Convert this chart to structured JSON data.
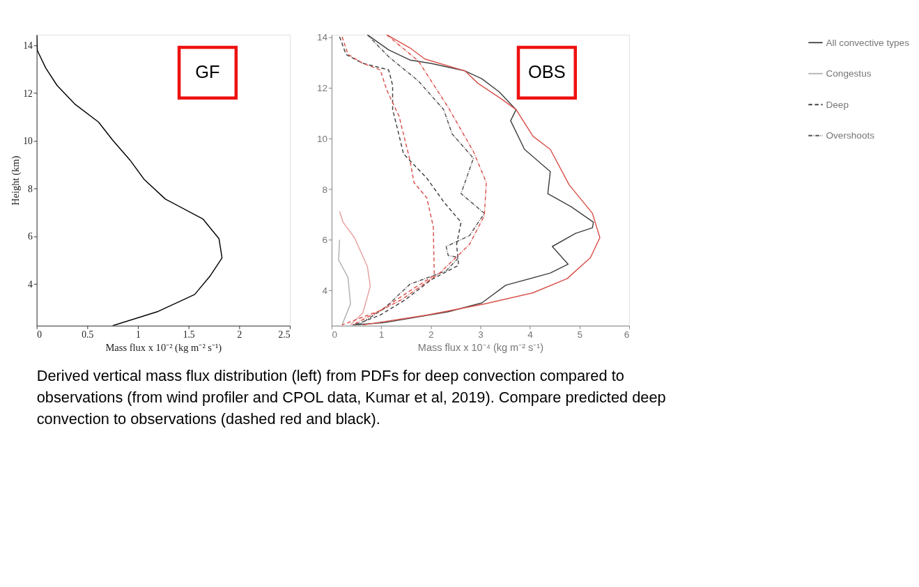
{
  "chart_data": [
    {
      "type": "line",
      "xlabel": "Mass flux x 10⁻² (kg m⁻² s⁻¹)",
      "ylabel": "Height (km)",
      "xlim": [
        0,
        2.5
      ],
      "xticks": [
        0,
        0.5,
        1,
        1.5,
        2,
        2.5
      ],
      "ylim": [
        2.25,
        14.45
      ],
      "yticks": [
        4,
        6,
        8,
        10,
        12,
        14
      ],
      "annotations": [
        "GF"
      ],
      "series": [
        {
          "color": "#000000",
          "line_style": "solid",
          "x": [
            0,
            0.006,
            0.09,
            0.2,
            0.38,
            0.61,
            0.75,
            0.92,
            1.06,
            1.27,
            1.64,
            1.8,
            1.83,
            1.71,
            1.56,
            1.2,
            0.75
          ],
          "values": [
            14.43,
            13.79,
            13.05,
            12.33,
            11.53,
            10.79,
            10.03,
            9.2,
            8.39,
            7.56,
            6.73,
            5.9,
            5.09,
            4.32,
            3.56,
            2.85,
            2.25
          ]
        }
      ]
    },
    {
      "type": "line",
      "xlabel": "Mass flux x 10⁻⁴ (kg m⁻² s⁻¹)",
      "xlim": [
        0,
        6
      ],
      "xticks": [
        0,
        1,
        2,
        3,
        4,
        5,
        6
      ],
      "ylim": [
        2.6,
        14.1
      ],
      "yticks": [
        4,
        6,
        8,
        10,
        12,
        14
      ],
      "legend": "right",
      "annotations": [
        "OBS",
        "Derived vertical mass flux distribution (left) from PDFs for deep convection compared to observations (from wind profiler and CPOL data, Kumar et al, 2019). Compare predicted deep convection to observations (dashed red and black)."
      ],
      "series": [
        {
          "name": "All convective types",
          "color": "#404040",
          "line_style": "solid",
          "x": [
            0.72,
            1.15,
            1.58,
            2.0,
            2.69,
            3.03,
            3.38,
            3.72,
            3.61,
            3.89,
            4.41,
            4.36,
            4.83,
            5.28,
            5.26,
            4.92,
            4.45,
            4.77,
            4.41,
            3.51,
            3.03,
            2.35,
            1.06,
            0.42
          ],
          "values": [
            14.1,
            13.5,
            13.1,
            12.97,
            12.67,
            12.36,
            11.84,
            11.14,
            10.7,
            9.57,
            8.69,
            7.82,
            7.3,
            6.69,
            6.47,
            6.25,
            5.73,
            5.03,
            4.68,
            4.2,
            3.5,
            3.15,
            2.72,
            2.63
          ]
        },
        {
          "color": "#d9504a",
          "line_style": "solid",
          "x": [
            1.11,
            1.58,
            1.88,
            2.69,
            2.95,
            3.42,
            3.72,
            4.06,
            4.41,
            4.79,
            5.26,
            5.41,
            5.22,
            4.75,
            4.06,
            3.08,
            1.92,
            0.63
          ],
          "values": [
            14.1,
            13.58,
            13.14,
            12.67,
            12.18,
            11.57,
            11.14,
            10.09,
            9.57,
            8.17,
            7.04,
            6.08,
            5.29,
            4.46,
            3.9,
            3.46,
            3.02,
            2.63
          ]
        },
        {
          "name": "Congestus",
          "color": "#b0b0b0",
          "line_style": "solid",
          "x": [
            0.16,
            0.14,
            0.33,
            0.38,
            0.21
          ],
          "values": [
            5.99,
            5.2,
            4.51,
            3.46,
            2.63
          ]
        },
        {
          "color": "#e8a0a0",
          "line_style": "solid",
          "x": [
            0.16,
            0.23,
            0.46,
            0.72,
            0.78,
            0.63,
            0.38
          ],
          "values": [
            7.12,
            6.69,
            6.08,
            4.94,
            4.16,
            3.11,
            2.63
          ]
        },
        {
          "name": "Deep",
          "color": "#404040",
          "line_style": "dashed",
          "x": [
            0.16,
            0.29,
            0.63,
            1.15,
            1.23,
            1.23,
            1.32,
            1.45,
            1.92,
            2.27,
            2.61,
            2.52,
            2.56,
            2.35,
            2.01,
            1.49,
            0.98,
            0.46
          ],
          "values": [
            14.02,
            13.32,
            12.97,
            12.71,
            12.1,
            11.14,
            10.44,
            9.39,
            8.43,
            7.47,
            6.69,
            5.81,
            4.99,
            4.77,
            4.42,
            3.63,
            3.02,
            2.63
          ]
        },
        {
          "color": "#d9504a",
          "line_style": "dashed",
          "x": [
            0.21,
            0.33,
            0.63,
            0.98,
            1.11,
            1.36,
            1.58,
            1.66,
            1.92,
            2.05,
            2.07,
            1.58,
            0.98,
            0.21
          ],
          "values": [
            14.02,
            13.32,
            12.97,
            12.71,
            11.92,
            10.88,
            9.13,
            8.26,
            7.65,
            6.51,
            4.59,
            3.98,
            3.2,
            2.63
          ]
        },
        {
          "name": "Overshoots",
          "color": "#505050",
          "line_style": "dotted",
          "x": [
            0.72,
            1.15,
            1.75,
            2.26,
            2.43,
            2.86,
            2.61,
            3.08,
            2.78,
            2.31,
            2.35,
            2.56,
            2.31,
            1.58,
            1.06,
            0.55
          ],
          "values": [
            14.1,
            13.23,
            12.27,
            11.14,
            10.18,
            9.22,
            7.82,
            7.04,
            6.16,
            5.73,
            5.38,
            5.29,
            4.77,
            4.24,
            3.28,
            2.63
          ]
        },
        {
          "color": "#d9504a",
          "line_style": "dotted",
          "x": [
            1.11,
            1.75,
            2.35,
            2.86,
            3.12,
            3.08,
            2.78,
            2.18,
            1.41,
            0.42
          ],
          "values": [
            14.1,
            13.06,
            11.23,
            9.48,
            8.26,
            6.95,
            5.81,
            4.68,
            3.63,
            2.63
          ]
        }
      ]
    }
  ]
}
